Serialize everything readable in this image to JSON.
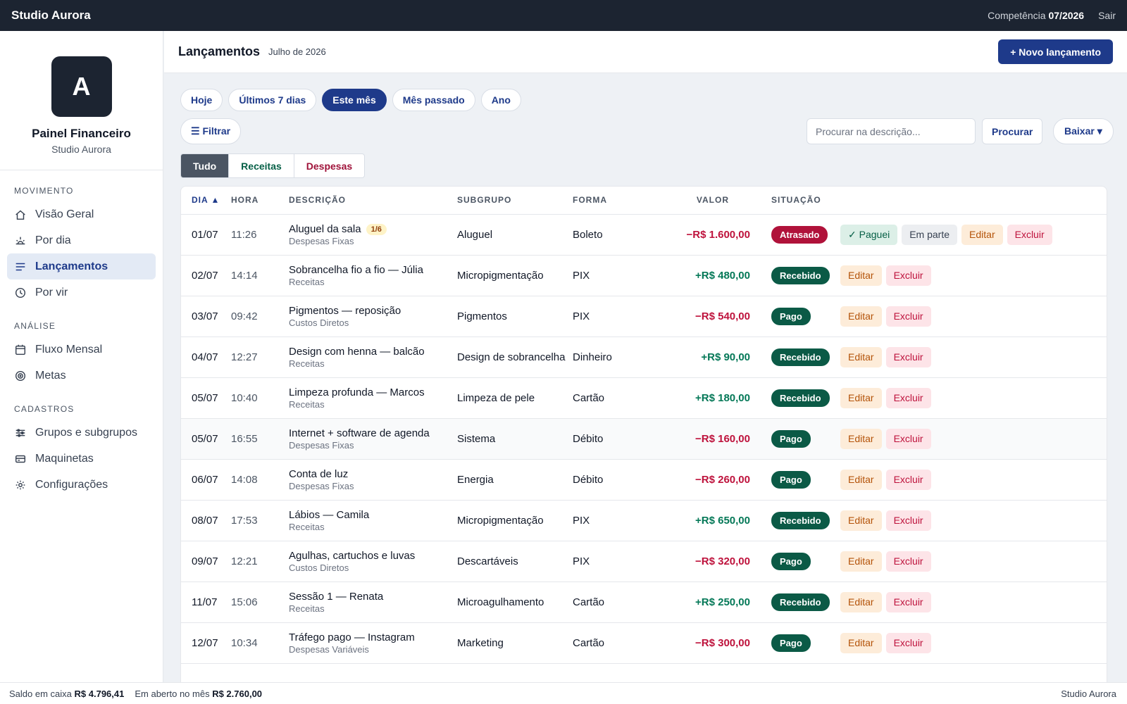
{
  "topbar": {
    "brand": "Studio Aurora",
    "competence_label": "Competência",
    "competence_value": "07/2026",
    "logout": "Sair"
  },
  "sidebar": {
    "avatar_letter": "A",
    "profile_name": "Painel Financeiro",
    "profile_sub": "Studio Aurora",
    "sections": [
      {
        "heading": "MOVIMENTO",
        "items": [
          {
            "label": "Visão Geral",
            "icon": "home-icon"
          },
          {
            "label": "Por dia",
            "icon": "sunrise-icon"
          },
          {
            "label": "Lançamentos",
            "icon": "list-icon",
            "active": true
          },
          {
            "label": "Por vir",
            "icon": "clock-icon"
          }
        ]
      },
      {
        "heading": "ANÁLISE",
        "items": [
          {
            "label": "Fluxo Mensal",
            "icon": "calendar-icon"
          },
          {
            "label": "Metas",
            "icon": "target-icon"
          }
        ]
      },
      {
        "heading": "CADASTROS",
        "items": [
          {
            "label": "Grupos e subgrupos",
            "icon": "sliders-icon"
          },
          {
            "label": "Maquinetas",
            "icon": "card-icon"
          },
          {
            "label": "Configurações",
            "icon": "gear-icon"
          }
        ]
      }
    ]
  },
  "header": {
    "title": "Lançamentos",
    "subtitle": "Julho de 2026",
    "new_button": "+ Novo lançamento"
  },
  "periods": [
    "Hoje",
    "Últimos 7 dias",
    "Este mês",
    "Mês passado",
    "Ano"
  ],
  "active_period": "Este mês",
  "toolbar": {
    "filter": "☰ Filtrar",
    "search_placeholder": "Procurar na descrição...",
    "search_button": "Procurar",
    "download_button": "Baixar ▾"
  },
  "type_tabs": {
    "all": "Tudo",
    "income": "Receitas",
    "expense": "Despesas"
  },
  "table": {
    "headers": {
      "day": "DIA ▲",
      "hour": "HORA",
      "desc": "DESCRIÇÃO",
      "sub": "SUBGRUPO",
      "form": "FORMA",
      "value": "VALOR",
      "status": "SITUAÇÃO"
    },
    "rows": [
      {
        "day": "01/07",
        "hour": "11:26",
        "desc": "Aluguel da sala",
        "installment": "1/6",
        "group": "Despesas Fixas",
        "sub": "Aluguel",
        "form": "Boleto",
        "value": "−R$ 1.600,00",
        "sign": "neg",
        "status": "Atrasado",
        "status_kind": "late",
        "extra_actions": true
      },
      {
        "day": "02/07",
        "hour": "14:14",
        "desc": "Sobrancelha fio a fio — Júlia",
        "group": "Receitas",
        "sub": "Micropigmentação",
        "form": "PIX",
        "value": "+R$ 480,00",
        "sign": "pos",
        "status": "Recebido",
        "status_kind": "ok"
      },
      {
        "day": "03/07",
        "hour": "09:42",
        "desc": "Pigmentos — reposição",
        "group": "Custos Diretos",
        "sub": "Pigmentos",
        "form": "PIX",
        "value": "−R$ 540,00",
        "sign": "neg",
        "status": "Pago",
        "status_kind": "ok"
      },
      {
        "day": "04/07",
        "hour": "12:27",
        "desc": "Design com henna — balcão",
        "group": "Receitas",
        "sub": "Design de sobrancelha",
        "form": "Dinheiro",
        "value": "+R$ 90,00",
        "sign": "pos",
        "status": "Recebido",
        "status_kind": "ok"
      },
      {
        "day": "05/07",
        "hour": "10:40",
        "desc": "Limpeza profunda — Marcos",
        "group": "Receitas",
        "sub": "Limpeza de pele",
        "form": "Cartão",
        "value": "+R$ 180,00",
        "sign": "pos",
        "status": "Recebido",
        "status_kind": "ok"
      },
      {
        "day": "05/07",
        "hour": "16:55",
        "desc": "Internet + software de agenda",
        "group": "Despesas Fixas",
        "sub": "Sistema",
        "form": "Débito",
        "value": "−R$ 160,00",
        "sign": "neg",
        "status": "Pago",
        "status_kind": "ok",
        "hover": true
      },
      {
        "day": "06/07",
        "hour": "14:08",
        "desc": "Conta de luz",
        "group": "Despesas Fixas",
        "sub": "Energia",
        "form": "Débito",
        "value": "−R$ 260,00",
        "sign": "neg",
        "status": "Pago",
        "status_kind": "ok"
      },
      {
        "day": "08/07",
        "hour": "17:53",
        "desc": "Lábios — Camila",
        "group": "Receitas",
        "sub": "Micropigmentação",
        "form": "PIX",
        "value": "+R$ 650,00",
        "sign": "pos",
        "status": "Recebido",
        "status_kind": "ok"
      },
      {
        "day": "09/07",
        "hour": "12:21",
        "desc": "Agulhas, cartuchos e luvas",
        "group": "Custos Diretos",
        "sub": "Descartáveis",
        "form": "PIX",
        "value": "−R$ 320,00",
        "sign": "neg",
        "status": "Pago",
        "status_kind": "ok"
      },
      {
        "day": "11/07",
        "hour": "15:06",
        "desc": "Sessão 1 — Renata",
        "group": "Receitas",
        "sub": "Microagulhamento",
        "form": "Cartão",
        "value": "+R$ 250,00",
        "sign": "pos",
        "status": "Recebido",
        "status_kind": "ok"
      },
      {
        "day": "12/07",
        "hour": "10:34",
        "desc": "Tráfego pago — Instagram",
        "group": "Despesas Variáveis",
        "sub": "Marketing",
        "form": "Cartão",
        "value": "−R$ 300,00",
        "sign": "neg",
        "status": "Pago",
        "status_kind": "ok"
      }
    ],
    "actions": {
      "paid": "✓ Paguei",
      "partial": "Em parte",
      "edit": "Editar",
      "delete": "Excluir"
    }
  },
  "footer": {
    "balance_label": "Saldo em caixa",
    "balance_value": "R$ 4.796,41",
    "open_label": "Em aberto no mês",
    "open_value": "R$ 2.760,00",
    "brand": "Studio Aurora"
  },
  "colors": {
    "topbar": "#1c2431",
    "accent": "#1e3a8a",
    "income": "#047857",
    "expense": "#be123c",
    "late_badge": "#b0123a",
    "ok_badge": "#0b5a46"
  }
}
